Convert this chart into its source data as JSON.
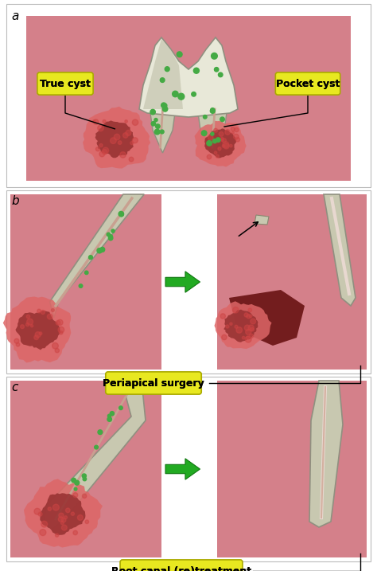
{
  "bg_color": "#ffffff",
  "gum_color": "#d4808a",
  "gum_light": "#e0a0aa",
  "tooth_outer": "#c8c8b0",
  "tooth_mid": "#b8b8a0",
  "tooth_inner": "#e8e8d8",
  "tooth_dark": "#909080",
  "canal_color": "#c8a090",
  "cyst_red": "#cc4444",
  "cyst_dark_red": "#993333",
  "cyst_texture": "#dd6666",
  "dark_lesion": "#6b1515",
  "green_dot": "#44aa44",
  "arrow_green": "#22aa22",
  "arrow_dark": "#117711",
  "label_bg": "#e8e820",
  "label_edge": "#aaaa00",
  "black": "#000000",
  "white": "#ffffff",
  "panel_edge": "#bbbbbb",
  "cut_bone": "#d0c8b8",
  "label_a": "a",
  "label_b": "b",
  "label_c": "c",
  "text_true_cyst": "True cyst",
  "text_pocket_cyst": "Pocket cyst",
  "text_periapical": "Periapical surgery",
  "text_root_canal": "Root canal (re)treatment",
  "figw": 4.74,
  "figh": 7.17,
  "dpi": 100
}
